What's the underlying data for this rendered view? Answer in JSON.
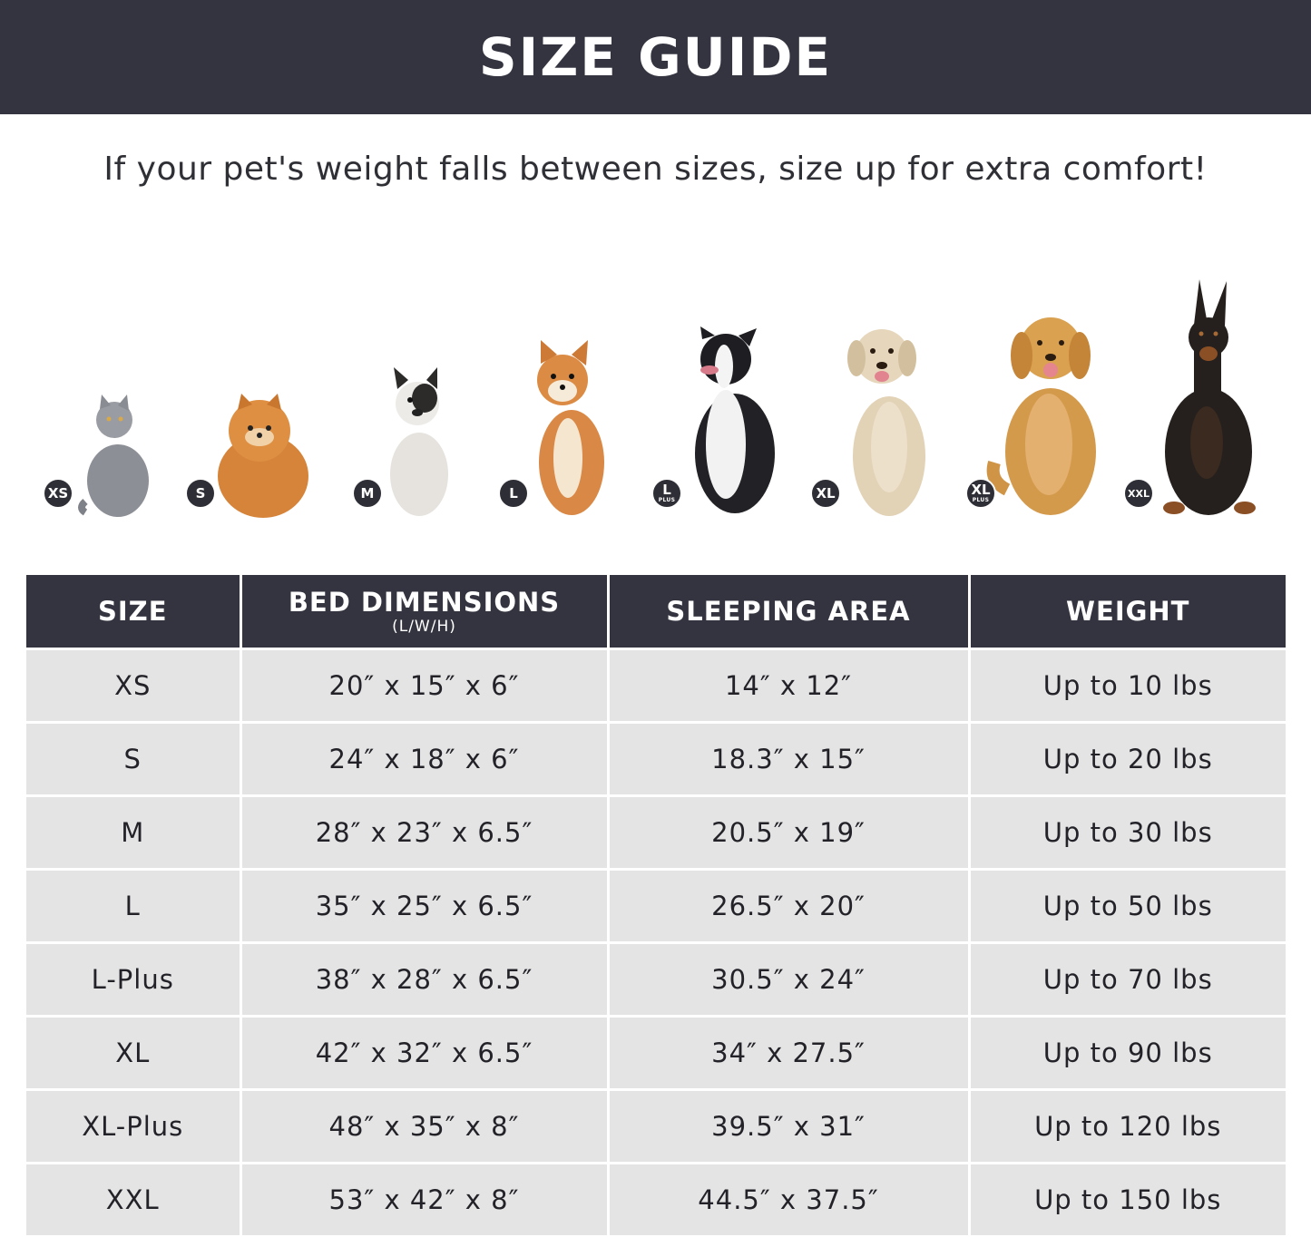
{
  "header": {
    "title": "SIZE GUIDE"
  },
  "subtitle": "If your pet's weight falls between sizes, size up for extra comfort!",
  "pets": [
    {
      "badge": "XS",
      "plus": "",
      "animal": "cat-icon",
      "color": "#8d8f96"
    },
    {
      "badge": "S",
      "plus": "",
      "animal": "pomeranian-icon",
      "color": "#d5843a"
    },
    {
      "badge": "M",
      "plus": "",
      "animal": "french-bulldog-icon",
      "color": "#e6e3de"
    },
    {
      "badge": "L",
      "plus": "",
      "animal": "shiba-inu-icon",
      "color": "#d98845"
    },
    {
      "badge": "L",
      "plus": "PLUS",
      "animal": "border-collie-icon",
      "color": "#222226"
    },
    {
      "badge": "XL",
      "plus": "",
      "animal": "labrador-icon",
      "color": "#e2d2b6"
    },
    {
      "badge": "XL",
      "plus": "PLUS",
      "animal": "golden-retriever-icon",
      "color": "#d49a4c"
    },
    {
      "badge": "XXL",
      "plus": "",
      "animal": "doberman-icon",
      "color": "#25201d"
    }
  ],
  "table": {
    "headers": {
      "size": "SIZE",
      "bed": "BED DIMENSIONS",
      "bed_sub": "(L/W/H)",
      "sleeping": "SLEEPING AREA",
      "weight": "WEIGHT"
    },
    "rows": [
      {
        "size": "XS",
        "bed": "20″ x 15″ x 6″",
        "sleeping": "14″ x 12″",
        "weight": "Up to 10 lbs"
      },
      {
        "size": "S",
        "bed": "24″ x 18″ x 6″",
        "sleeping": "18.3″ x 15″",
        "weight": "Up to 20 lbs"
      },
      {
        "size": "M",
        "bed": "28″ x 23″ x 6.5″",
        "sleeping": "20.5″ x 19″",
        "weight": "Up to 30 lbs"
      },
      {
        "size": "L",
        "bed": "35″ x 25″ x 6.5″",
        "sleeping": "26.5″ x 20″",
        "weight": "Up to 50 lbs"
      },
      {
        "size": "L-Plus",
        "bed": "38″ x 28″ x 6.5″",
        "sleeping": "30.5″ x 24″",
        "weight": "Up to 70 lbs"
      },
      {
        "size": "XL",
        "bed": "42″ x 32″ x 6.5″",
        "sleeping": "34″ x 27.5″",
        "weight": "Up to 90 lbs"
      },
      {
        "size": "XL-Plus",
        "bed": "48″ x 35″ x 8″",
        "sleeping": "39.5″ x 31″",
        "weight": "Up to 120 lbs"
      },
      {
        "size": "XXL",
        "bed": "53″ x 42″ x 8″",
        "sleeping": "44.5″ x 37.5″",
        "weight": "Up to 150 lbs"
      }
    ]
  }
}
